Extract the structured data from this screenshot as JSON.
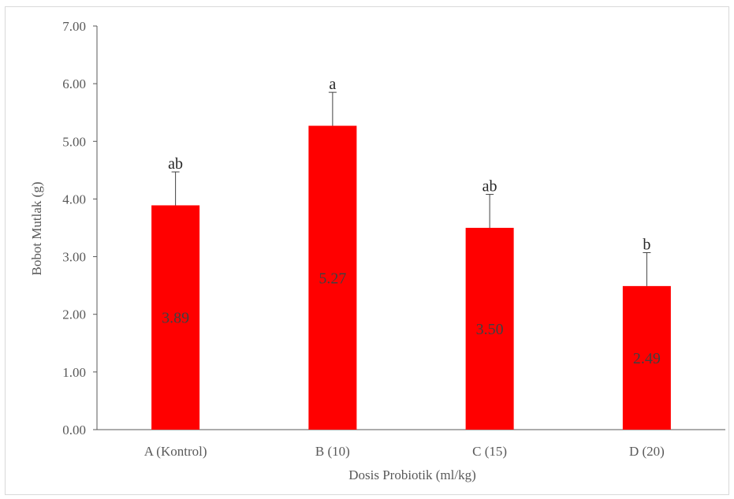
{
  "chart_data": {
    "type": "bar",
    "title": "",
    "xlabel": "Dosis Probiotik  (ml/kg)",
    "ylabel": "Bobot Mutlak  (g)",
    "categories": [
      "A (Kontrol)",
      "B (10)",
      "C (15)",
      "D (20)"
    ],
    "values": [
      3.89,
      5.27,
      3.5,
      2.49
    ],
    "value_labels": [
      "3.89",
      "5.27",
      "3.50",
      "2.49"
    ],
    "error_plus": [
      0.58,
      0.58,
      0.58,
      0.58
    ],
    "significance_labels": [
      "ab",
      "a",
      "ab",
      "b"
    ],
    "ylim": [
      0,
      7
    ],
    "yticks": [
      "0.00",
      "1.00",
      "2.00",
      "3.00",
      "4.00",
      "5.00",
      "6.00",
      "7.00"
    ],
    "grid": false,
    "bar_color": "#ff0000",
    "axis_color": "#595959"
  }
}
